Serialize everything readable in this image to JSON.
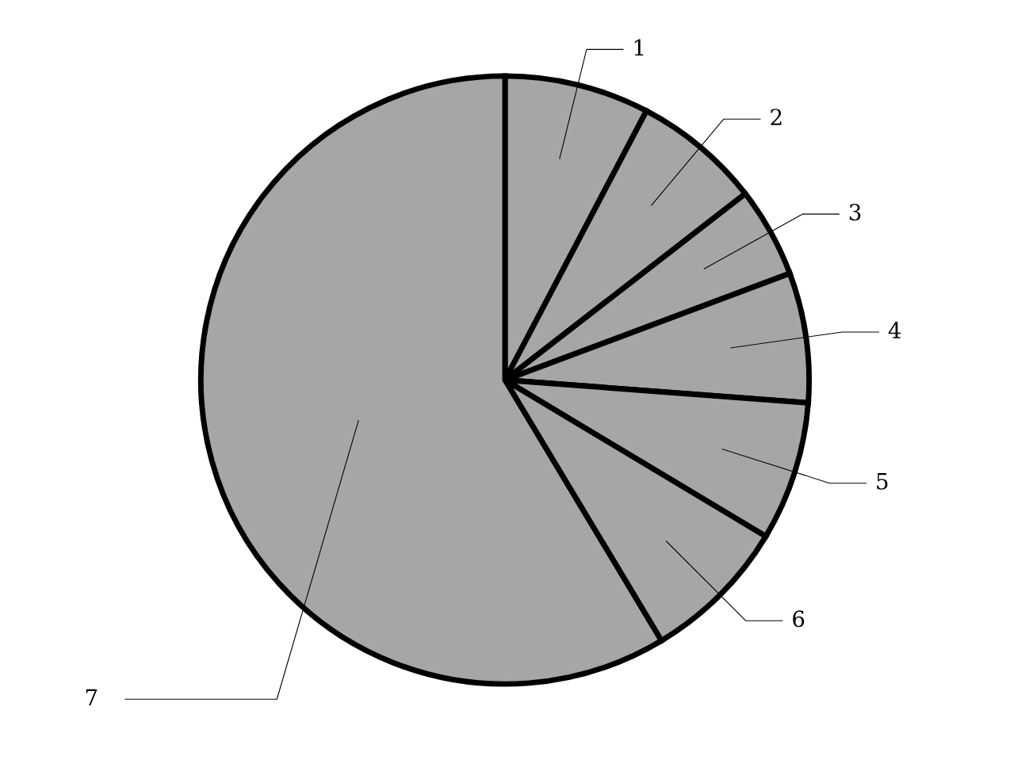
{
  "chart_data": {
    "type": "pie",
    "categories": [
      "1",
      "2",
      "3",
      "4",
      "5",
      "6",
      "7"
    ],
    "values": [
      7.7,
      6.8,
      4.8,
      6.9,
      7.4,
      7.8,
      58.6
    ],
    "colors": [
      "#a6a6a6",
      "#a6a6a6",
      "#a6a6a6",
      "#a6a6a6",
      "#a6a6a6",
      "#a6a6a6",
      "#a6a6a6"
    ]
  }
}
